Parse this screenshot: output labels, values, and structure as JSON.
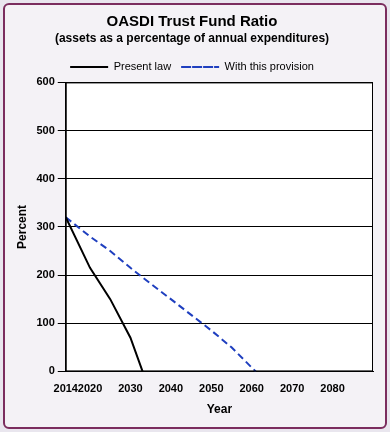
{
  "chart_data": {
    "type": "line",
    "title": "OASDI Trust Fund Ratio",
    "subtitle": "(assets as a percentage of annual expenditures)",
    "x_label": "Year",
    "y_label": "Percent",
    "x": [
      2014,
      2020,
      2025,
      2030,
      2033,
      2040,
      2050,
      2055,
      2060,
      2061
    ],
    "series": [
      {
        "name": "Present law",
        "color": "#000000",
        "line_style": "solid",
        "values": [
          320,
          215,
          150,
          70,
          0,
          null,
          null,
          null,
          null,
          null
        ]
      },
      {
        "name": "With this provision",
        "color": "#1f3fbf",
        "line_style": "dashed",
        "values": [
          320,
          280,
          250,
          215,
          195,
          150,
          85,
          50,
          8,
          0
        ]
      }
    ],
    "xlim": [
      2014,
      2090
    ],
    "xticks": [
      2014,
      2020,
      2030,
      2040,
      2050,
      2060,
      2070,
      2080
    ],
    "ylim": [
      0,
      600
    ],
    "yticks": [
      0,
      100,
      200,
      300,
      400,
      500,
      600
    ],
    "grid": true,
    "legend": "top"
  }
}
